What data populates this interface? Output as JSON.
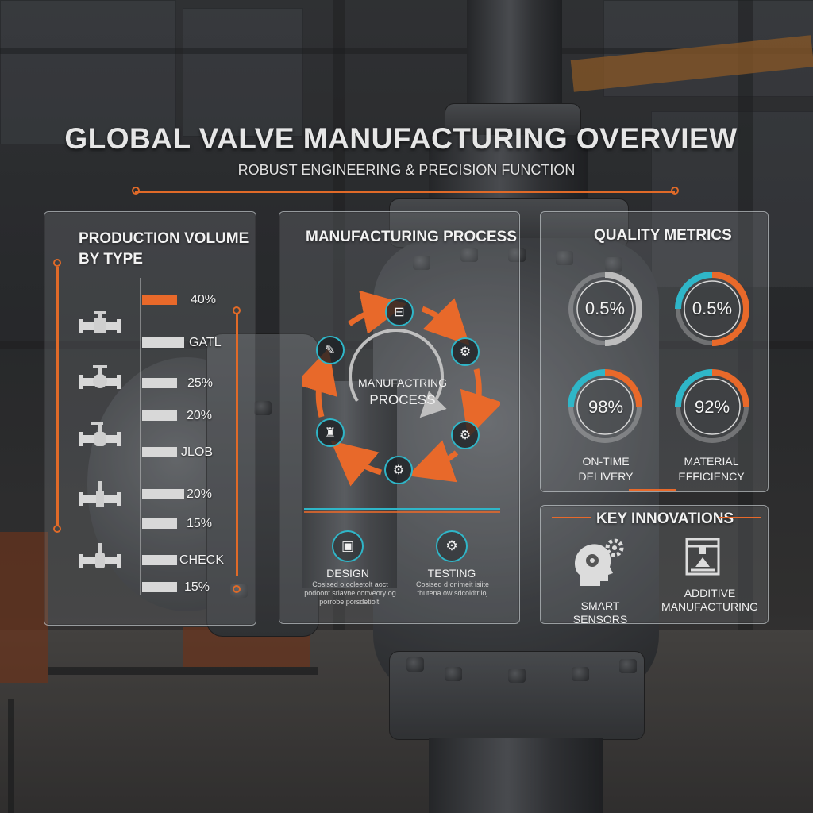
{
  "header": {
    "title": "GLOBAL VALVE MANUFACTURING OVERVIEW",
    "subtitle": "ROBUST ENGINEERING & PRECISION FUNCTION"
  },
  "production": {
    "title_line1": "PRODUCTION VOLUME",
    "title_line2": "BY TYPE",
    "labels": [
      "40%",
      "GATL",
      "25%",
      "20%",
      "JLOB",
      "20%",
      "15%",
      "CHECK",
      "15%"
    ],
    "bar_fractions": [
      0.37,
      0.44,
      0.37,
      0.37,
      0.37,
      0.44,
      0.37,
      0.37,
      0.37
    ],
    "valve_icons": [
      "gate-valve-icon",
      "globe-valve-icon",
      "ball-valve-icon",
      "butterfly-valve-icon",
      "check-valve-icon"
    ]
  },
  "process": {
    "title": "MANUFACTURING PROCESS",
    "center_line1": "MANUFACTRING",
    "center_line2": "PROCESS",
    "stage_icons": [
      "casting-icon",
      "machining-gears-icon",
      "assembly-icon",
      "testing-gears-icon",
      "robot-arm-icon",
      "design-icon"
    ],
    "design": {
      "label": "DESIGN",
      "desc": "Cosised o ocleetolt aoct podoont sriavne conveory og porrobe porsdetiolt."
    },
    "testing": {
      "label": "TESTING",
      "desc": "Cosised d onimeit isiite thutena ow sdcoidtrlioj"
    }
  },
  "quality": {
    "title": "QUALITY METRICS",
    "gauges": [
      {
        "value": "0.5%",
        "fraction": 0.5
      },
      {
        "value": "0.5%",
        "fraction": 0.75
      },
      {
        "value": "98%",
        "fraction": 0.5
      },
      {
        "value": "92%",
        "fraction": 0.5
      }
    ],
    "caption_ontime_1": "ON-TIME",
    "caption_ontime_2": "DELIVERY",
    "caption_material_1": "MATERIAL",
    "caption_material_2": "EFFICIENCY"
  },
  "innovations": {
    "title": "KEY INNOVATIONS",
    "smart_sensors": "SMART SENSORS",
    "additive_line1": "ADDITIVE",
    "additive_line2": "MANUFACTURING"
  },
  "colors": {
    "accent_orange": "#e8692a",
    "accent_cyan": "#2fb6c8"
  }
}
